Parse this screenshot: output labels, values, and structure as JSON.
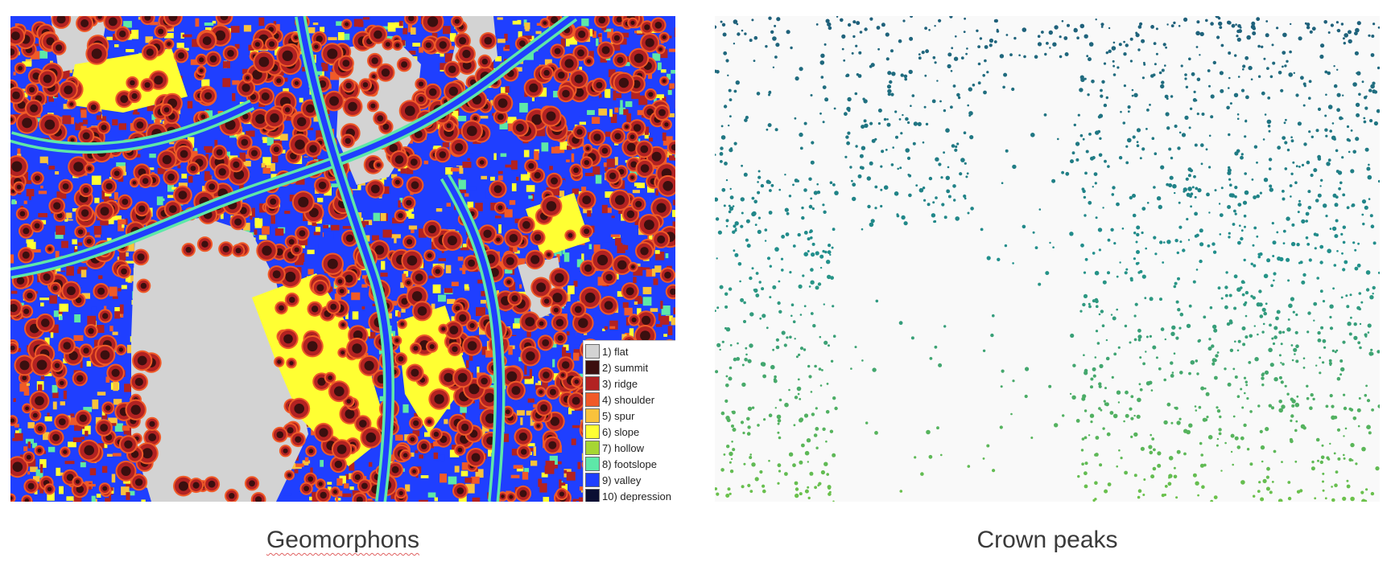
{
  "left_panel": {
    "caption": "Geomorphons",
    "legend": [
      {
        "label": "1) flat",
        "color": "#d3d3d3"
      },
      {
        "label": "2) summit",
        "color": "#3b0f0f"
      },
      {
        "label": "3) ridge",
        "color": "#b22222"
      },
      {
        "label": "4) shoulder",
        "color": "#f05a28"
      },
      {
        "label": "5) spur",
        "color": "#f9c23c"
      },
      {
        "label": "6) slope",
        "color": "#ffff33"
      },
      {
        "label": "7) hollow",
        "color": "#a6d633"
      },
      {
        "label": "8) footslope",
        "color": "#5ee8a8"
      },
      {
        "label": "9) valley",
        "color": "#1f3fff"
      },
      {
        "label": "10) depression",
        "color": "#0a0f33"
      }
    ]
  },
  "right_panel": {
    "caption": "Crown peaks",
    "colors": {
      "background": "#f9f9f9",
      "peak_top": "#1f5f7a",
      "peak_mid": "#21908c",
      "peak_bottom": "#6cc24a"
    }
  }
}
